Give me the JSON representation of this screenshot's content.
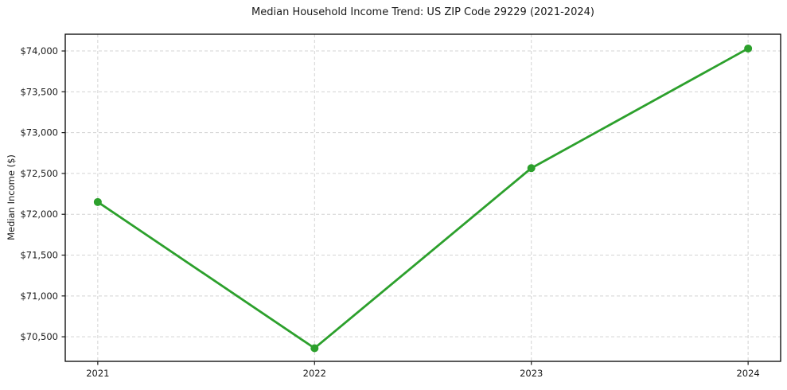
{
  "page": {
    "background": "#ffffff"
  },
  "header": {
    "title": "Median Household Income Trend: US ZIP Code 29229 (2021-2024)"
  },
  "chart_data": {
    "type": "line",
    "title": "Median Household Income Trend: US ZIP Code 29229 (2021-2024)",
    "xlabel": "",
    "ylabel": "Median Income ($)",
    "x": [
      2021,
      2022,
      2023,
      2024
    ],
    "x_tick_labels": [
      "2021",
      "2022",
      "2023",
      "2024"
    ],
    "series": [
      {
        "values": [
          72150,
          70360,
          72565,
          74030
        ],
        "color": "#2ca02c",
        "line_width": 2.8,
        "marker": "circle",
        "marker_radius": 5
      }
    ],
    "y_ticks": [
      70500,
      71000,
      71500,
      72000,
      72500,
      73000,
      73500,
      74000
    ],
    "y_tick_labels": [
      "$70,500",
      "$71,000",
      "$71,500",
      "$72,000",
      "$72,500",
      "$73,000",
      "$73,500",
      "$74,000"
    ],
    "xlim": [
      2020.85,
      2024.15
    ],
    "ylim": [
      70199,
      74205
    ],
    "grid": {
      "visible": true,
      "style": "dashed",
      "color": "#d3d3d3"
    },
    "legend": {
      "visible": false
    },
    "axes": {
      "border_color": "#000000",
      "tick_color": "#1a1a1a",
      "tick_label_color": "#1a1a1a",
      "tick_label_size": 11.5
    }
  }
}
